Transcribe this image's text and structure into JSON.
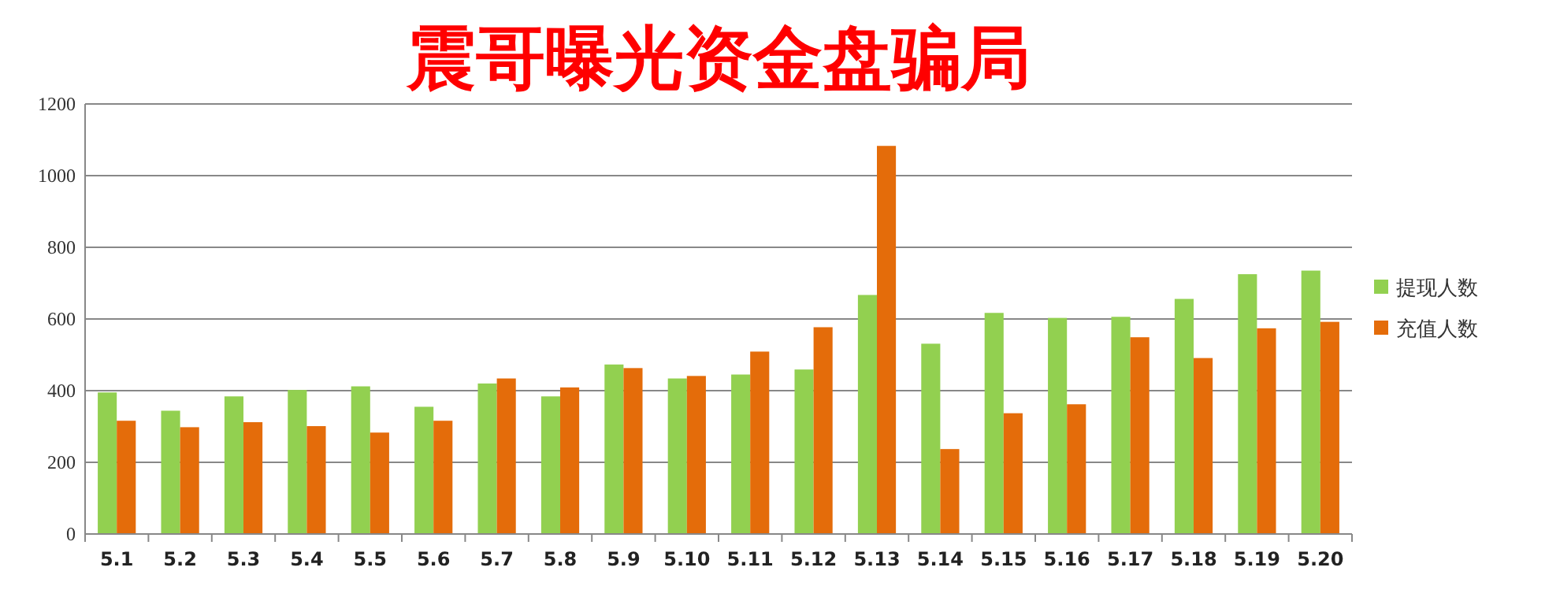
{
  "chart_data": {
    "type": "bar",
    "title": "震哥曝光资金盘骗局",
    "categories": [
      "5.1",
      "5.2",
      "5.3",
      "5.4",
      "5.5",
      "5.6",
      "5.7",
      "5.8",
      "5.9",
      "5.10",
      "5.11",
      "5.12",
      "5.13",
      "5.14",
      "5.15",
      "5.16",
      "5.17",
      "5.18",
      "5.19",
      "5.20"
    ],
    "series": [
      {
        "name": "提现人数",
        "color": "#92d050",
        "values": [
          395,
          344,
          384,
          402,
          412,
          355,
          420,
          384,
          473,
          434,
          445,
          459,
          667,
          531,
          617,
          603,
          606,
          656,
          725,
          735
        ]
      },
      {
        "name": "充值人数",
        "color": "#e46c0a",
        "values": [
          316,
          298,
          312,
          301,
          283,
          316,
          434,
          409,
          463,
          441,
          509,
          577,
          1083,
          237,
          337,
          362,
          549,
          491,
          574,
          592
        ]
      }
    ],
    "ylim": [
      0,
      1200
    ],
    "yticks": [
      0,
      200,
      400,
      600,
      800,
      1000,
      1200
    ],
    "grid": "y",
    "legend": "right"
  }
}
